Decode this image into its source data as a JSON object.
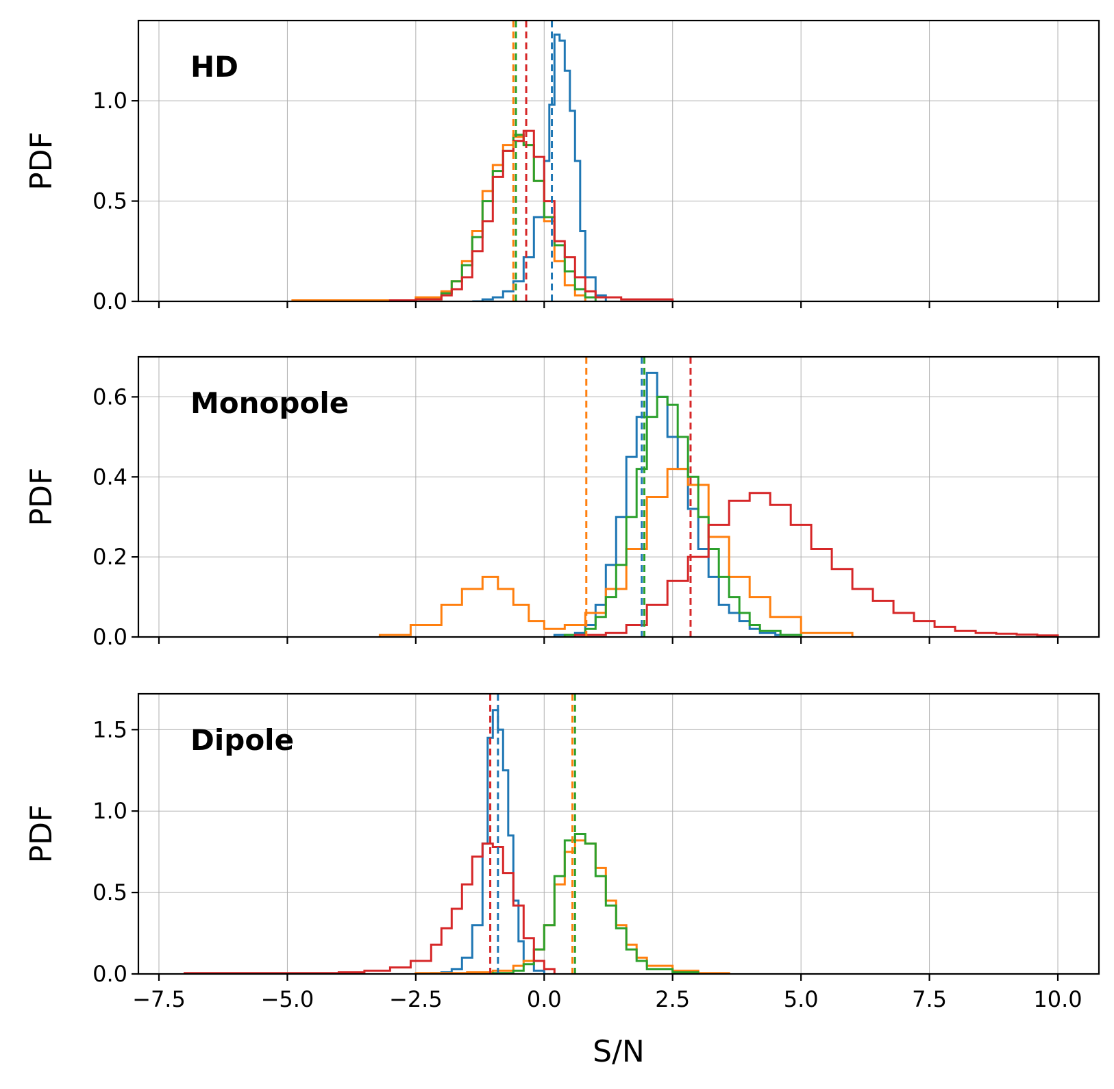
{
  "chart_data": {
    "type": "histogram",
    "xlabel": "S/N",
    "ylabel": "PDF",
    "xlim": [
      -7.9,
      10.8
    ],
    "xticks": [
      -7.5,
      -5.0,
      -2.5,
      0.0,
      2.5,
      5.0,
      7.5,
      10.0
    ],
    "xtick_labels": [
      "−7.5",
      "−5.0",
      "−2.5",
      "0.0",
      "2.5",
      "5.0",
      "7.5",
      "10.0"
    ],
    "grid": true,
    "colors": [
      "#1f77b4",
      "#ff7f0e",
      "#2ca02c",
      "#d62728"
    ],
    "panels": [
      {
        "label": "HD",
        "ylim": [
          0,
          1.4
        ],
        "yticks": [
          0.0,
          0.5,
          1.0
        ],
        "ytick_labels": [
          "0.0",
          "0.5",
          "1.0"
        ],
        "series": [
          {
            "color": "#1f77b4",
            "mean": 0.15,
            "x": [
              -1.4,
              -1.2,
              -1.0,
              -0.8,
              -0.6,
              -0.4,
              -0.2,
              0.0,
              0.1,
              0.2,
              0.3,
              0.4,
              0.5,
              0.6,
              0.7,
              0.8,
              1.0,
              1.2
            ],
            "y": [
              0.0,
              0.01,
              0.02,
              0.05,
              0.1,
              0.22,
              0.42,
              0.7,
              0.98,
              1.33,
              1.3,
              1.15,
              0.95,
              0.7,
              0.35,
              0.12,
              0.03,
              0.0
            ]
          },
          {
            "color": "#ff7f0e",
            "mean": -0.6,
            "x": [
              -4.9,
              -3.5,
              -2.5,
              -2.0,
              -1.8,
              -1.6,
              -1.4,
              -1.2,
              -1.0,
              -0.8,
              -0.6,
              -0.4,
              -0.2,
              0.0,
              0.2,
              0.4,
              0.6,
              0.8
            ],
            "y": [
              0.005,
              0.005,
              0.02,
              0.05,
              0.1,
              0.2,
              0.35,
              0.55,
              0.68,
              0.78,
              0.82,
              0.78,
              0.6,
              0.4,
              0.2,
              0.08,
              0.03,
              0.0
            ]
          },
          {
            "color": "#2ca02c",
            "mean": -0.55,
            "x": [
              -3.0,
              -2.5,
              -2.0,
              -1.8,
              -1.6,
              -1.4,
              -1.2,
              -1.0,
              -0.8,
              -0.6,
              -0.4,
              -0.2,
              0.0,
              0.2,
              0.4,
              0.6,
              0.8,
              1.0
            ],
            "y": [
              0.005,
              0.01,
              0.04,
              0.1,
              0.18,
              0.32,
              0.5,
              0.65,
              0.75,
              0.83,
              0.78,
              0.6,
              0.42,
              0.28,
              0.15,
              0.06,
              0.02,
              0.0
            ]
          },
          {
            "color": "#d62728",
            "mean": -0.35,
            "x": [
              -3.0,
              -2.5,
              -2.0,
              -1.8,
              -1.6,
              -1.4,
              -1.2,
              -1.0,
              -0.8,
              -0.6,
              -0.4,
              -0.2,
              0.0,
              0.2,
              0.4,
              0.6,
              0.8,
              1.0,
              1.5,
              2.0,
              2.5
            ],
            "y": [
              0.005,
              0.01,
              0.03,
              0.06,
              0.12,
              0.25,
              0.4,
              0.62,
              0.75,
              0.8,
              0.85,
              0.72,
              0.5,
              0.3,
              0.22,
              0.12,
              0.05,
              0.02,
              0.01,
              0.01,
              0.0
            ]
          }
        ]
      },
      {
        "label": "Monopole",
        "ylim": [
          0,
          0.7
        ],
        "yticks": [
          0.0,
          0.2,
          0.4,
          0.6
        ],
        "ytick_labels": [
          "0.0",
          "0.2",
          "0.4",
          "0.6"
        ],
        "series": [
          {
            "color": "#1f77b4",
            "mean": 1.9,
            "x": [
              0.2,
              0.6,
              0.8,
              1.0,
              1.2,
              1.4,
              1.6,
              1.8,
              2.0,
              2.2,
              2.4,
              2.6,
              2.8,
              3.0,
              3.2,
              3.4,
              3.6,
              3.8,
              4.0,
              4.2,
              4.5,
              5.0
            ],
            "y": [
              0.005,
              0.01,
              0.03,
              0.08,
              0.18,
              0.3,
              0.45,
              0.55,
              0.66,
              0.6,
              0.5,
              0.42,
              0.32,
              0.22,
              0.15,
              0.08,
              0.06,
              0.04,
              0.02,
              0.01,
              0.005,
              0.0
            ]
          },
          {
            "color": "#ff7f0e",
            "mean": 0.82,
            "x": [
              -3.2,
              -2.6,
              -2.0,
              -1.6,
              -1.2,
              -0.9,
              -0.6,
              -0.3,
              0.0,
              0.4,
              0.8,
              1.2,
              1.6,
              2.0,
              2.4,
              2.8,
              3.2,
              3.6,
              4.0,
              4.4,
              5.0,
              6.0
            ],
            "y": [
              0.005,
              0.03,
              0.08,
              0.12,
              0.15,
              0.12,
              0.08,
              0.04,
              0.02,
              0.03,
              0.06,
              0.12,
              0.22,
              0.35,
              0.42,
              0.38,
              0.25,
              0.15,
              0.1,
              0.05,
              0.01,
              0.0
            ]
          },
          {
            "color": "#2ca02c",
            "mean": 1.95,
            "x": [
              0.4,
              0.8,
              1.0,
              1.2,
              1.4,
              1.6,
              1.8,
              2.0,
              2.2,
              2.4,
              2.6,
              2.8,
              3.0,
              3.2,
              3.4,
              3.6,
              3.8,
              4.0,
              4.2,
              4.6,
              5.0
            ],
            "y": [
              0.005,
              0.02,
              0.05,
              0.1,
              0.18,
              0.3,
              0.42,
              0.55,
              0.6,
              0.58,
              0.5,
              0.4,
              0.3,
              0.22,
              0.15,
              0.1,
              0.06,
              0.03,
              0.015,
              0.005,
              0.0
            ]
          },
          {
            "color": "#d62728",
            "mean": 2.85,
            "x": [
              0.6,
              1.2,
              1.6,
              2.0,
              2.4,
              2.8,
              3.2,
              3.6,
              4.0,
              4.4,
              4.8,
              5.2,
              5.6,
              6.0,
              6.4,
              6.8,
              7.2,
              7.6,
              8.0,
              8.4,
              8.8,
              9.2,
              9.6,
              10.0
            ],
            "y": [
              0.005,
              0.01,
              0.03,
              0.08,
              0.14,
              0.2,
              0.28,
              0.34,
              0.36,
              0.33,
              0.28,
              0.22,
              0.17,
              0.12,
              0.09,
              0.06,
              0.04,
              0.025,
              0.015,
              0.01,
              0.008,
              0.006,
              0.004,
              0.0
            ]
          }
        ]
      },
      {
        "label": "Dipole",
        "ylim": [
          0,
          1.72
        ],
        "yticks": [
          0.0,
          0.5,
          1.0,
          1.5
        ],
        "ytick_labels": [
          "0.0",
          "0.5",
          "1.0",
          "1.5"
        ],
        "series": [
          {
            "color": "#1f77b4",
            "mean": -0.9,
            "x": [
              -2.2,
              -2.0,
              -1.8,
              -1.6,
              -1.4,
              -1.2,
              -1.1,
              -1.0,
              -0.9,
              -0.8,
              -0.7,
              -0.6,
              -0.5,
              -0.4,
              -0.2,
              0.0
            ],
            "y": [
              0.005,
              0.01,
              0.03,
              0.1,
              0.3,
              0.8,
              1.45,
              1.62,
              1.5,
              1.25,
              0.85,
              0.45,
              0.2,
              0.08,
              0.02,
              0.0
            ]
          },
          {
            "color": "#ff7f0e",
            "mean": 0.55,
            "x": [
              -2.5,
              -1.5,
              -1.0,
              -0.6,
              -0.4,
              -0.2,
              0.0,
              0.2,
              0.4,
              0.6,
              0.8,
              1.0,
              1.2,
              1.4,
              1.6,
              1.8,
              2.0,
              2.5,
              3.0,
              3.6
            ],
            "y": [
              0.005,
              0.01,
              0.02,
              0.05,
              0.08,
              0.15,
              0.3,
              0.55,
              0.75,
              0.82,
              0.8,
              0.65,
              0.45,
              0.3,
              0.18,
              0.1,
              0.05,
              0.02,
              0.005,
              0.0
            ]
          },
          {
            "color": "#2ca02c",
            "mean": 0.6,
            "x": [
              -1.0,
              -0.6,
              -0.4,
              -0.2,
              0.0,
              0.2,
              0.4,
              0.6,
              0.8,
              1.0,
              1.2,
              1.4,
              1.6,
              1.8,
              2.0,
              2.5,
              3.0
            ],
            "y": [
              0.005,
              0.02,
              0.06,
              0.15,
              0.3,
              0.6,
              0.82,
              0.86,
              0.8,
              0.6,
              0.42,
              0.28,
              0.15,
              0.08,
              0.03,
              0.01,
              0.0
            ]
          },
          {
            "color": "#d62728",
            "mean": -1.05,
            "x": [
              -7.0,
              -5.0,
              -4.0,
              -3.5,
              -3.0,
              -2.6,
              -2.2,
              -2.0,
              -1.8,
              -1.6,
              -1.4,
              -1.2,
              -1.0,
              -0.8,
              -0.6,
              -0.4,
              -0.2,
              0.0,
              0.2
            ],
            "y": [
              0.005,
              0.005,
              0.01,
              0.02,
              0.04,
              0.08,
              0.18,
              0.28,
              0.4,
              0.55,
              0.72,
              0.8,
              0.78,
              0.62,
              0.42,
              0.22,
              0.08,
              0.03,
              0.0
            ]
          }
        ]
      }
    ]
  }
}
